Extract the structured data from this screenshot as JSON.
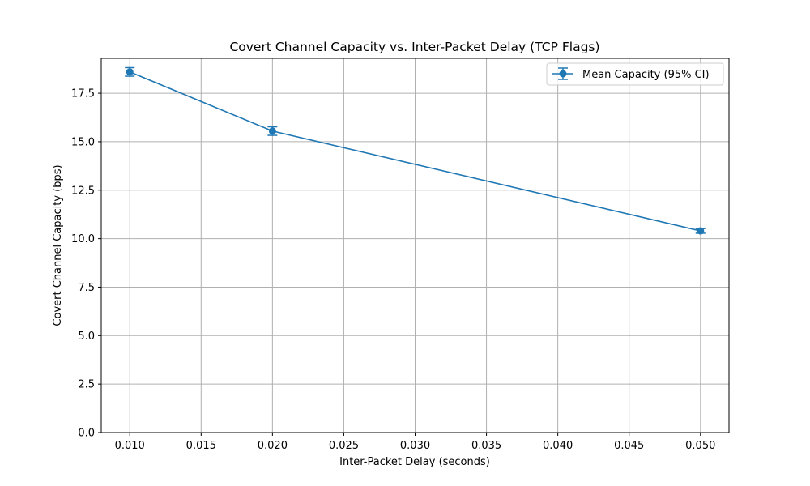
{
  "chart_data": {
    "type": "line",
    "title": "Covert Channel Capacity vs. Inter-Packet Delay (TCP Flags)",
    "xlabel": "Inter-Packet Delay (seconds)",
    "ylabel": "Covert Channel Capacity (bps)",
    "xlim": [
      0.008,
      0.052
    ],
    "ylim": [
      0,
      19.3
    ],
    "x_ticks": [
      0.01,
      0.015,
      0.02,
      0.025,
      0.03,
      0.035,
      0.04,
      0.045,
      0.05
    ],
    "x_tick_labels": [
      "0.010",
      "0.015",
      "0.020",
      "0.025",
      "0.030",
      "0.035",
      "0.040",
      "0.045",
      "0.050"
    ],
    "y_ticks": [
      0,
      2.5,
      5,
      7.5,
      10,
      12.5,
      15,
      17.5
    ],
    "y_tick_labels": [
      "0.0",
      "2.5",
      "5.0",
      "7.5",
      "10.0",
      "12.5",
      "15.0",
      "17.5"
    ],
    "grid": true,
    "legend_position": "upper-right",
    "series": [
      {
        "name": "Mean Capacity (95% CI)",
        "color": "#1f77b4",
        "marker": "circle",
        "x": [
          0.01,
          0.02,
          0.05
        ],
        "y": [
          18.6,
          15.55,
          10.4
        ],
        "error": [
          0.22,
          0.22,
          0.12
        ]
      }
    ]
  }
}
